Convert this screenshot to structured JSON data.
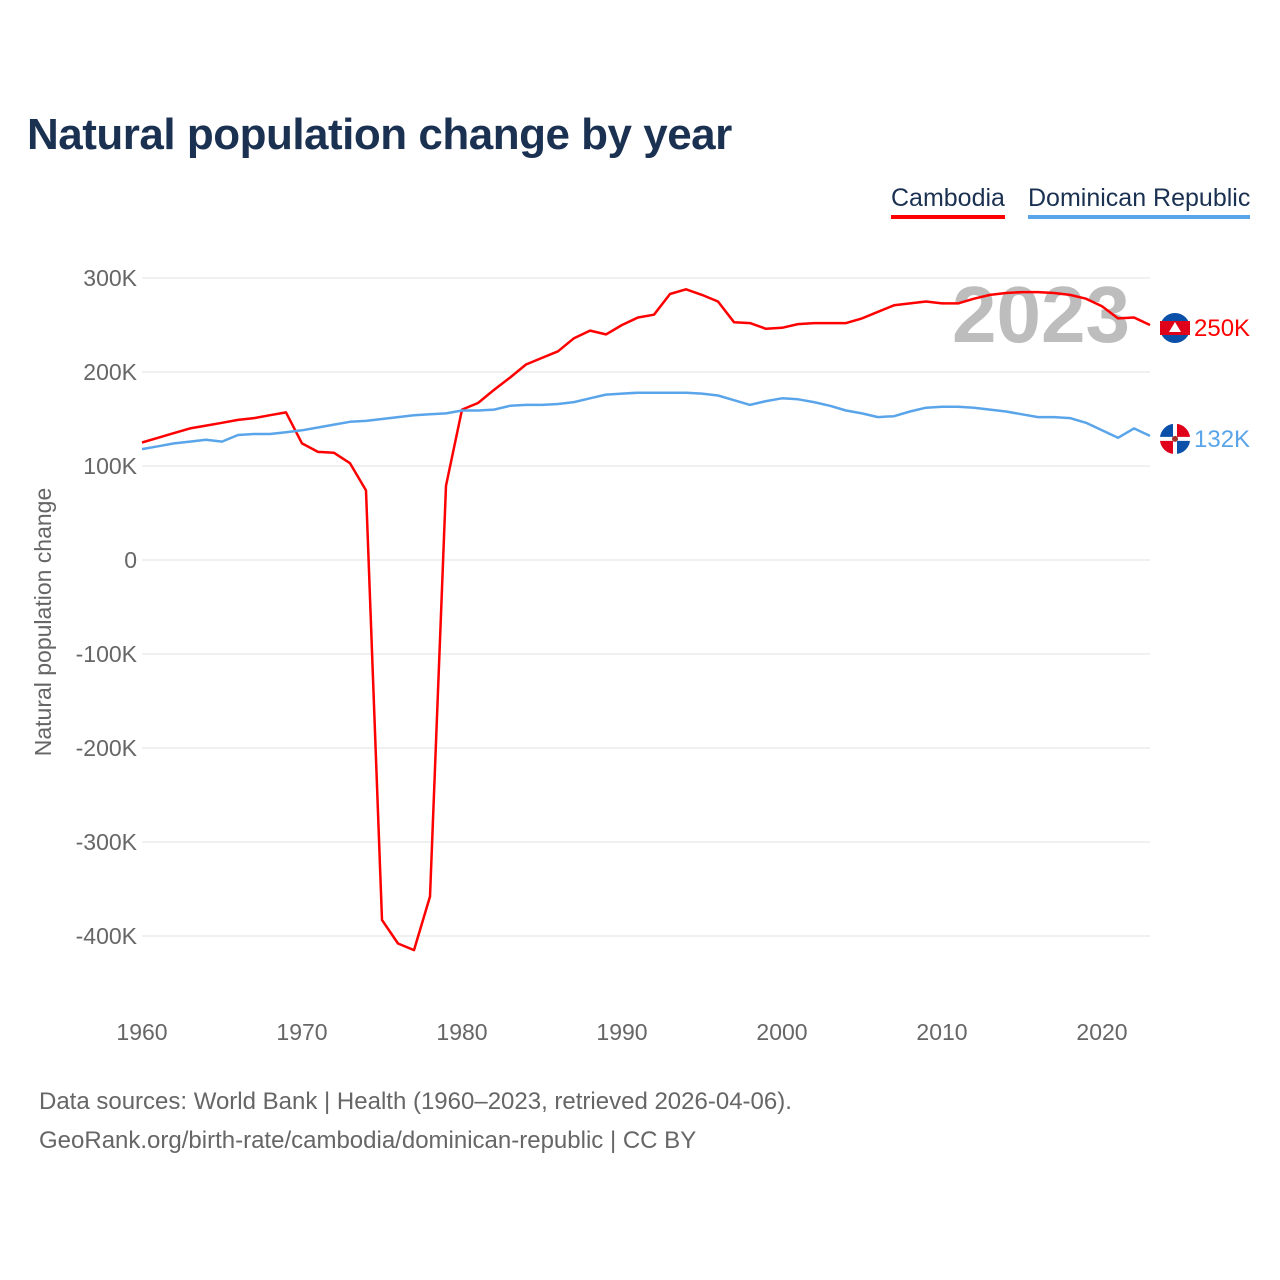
{
  "chart_data": {
    "type": "line",
    "title": "Natural population change by year",
    "xlabel": "",
    "ylabel": "Natural population change",
    "xlim": [
      1960,
      2023
    ],
    "ylim": [
      -450000,
      300000
    ],
    "x_ticks": [
      1960,
      1970,
      1980,
      1990,
      2000,
      2010,
      2020
    ],
    "x_tick_labels": [
      "1960",
      "1970",
      "1980",
      "1990",
      "2000",
      "2010",
      "2020"
    ],
    "y_ticks": [
      300000,
      200000,
      100000,
      0,
      -100000,
      -200000,
      -300000,
      -400000
    ],
    "y_tick_labels": [
      "300K",
      "200K",
      "100K",
      "0",
      "-100K",
      "-200K",
      "-300K",
      "-400K"
    ],
    "grid": true,
    "legend_position": "top-right",
    "year_watermark": "2023",
    "x": [
      1960,
      1961,
      1962,
      1963,
      1964,
      1965,
      1966,
      1967,
      1968,
      1969,
      1970,
      1971,
      1972,
      1973,
      1974,
      1975,
      1976,
      1977,
      1978,
      1979,
      1980,
      1981,
      1982,
      1983,
      1984,
      1985,
      1986,
      1987,
      1988,
      1989,
      1990,
      1991,
      1992,
      1993,
      1994,
      1995,
      1996,
      1997,
      1998,
      1999,
      2000,
      2001,
      2002,
      2003,
      2004,
      2005,
      2006,
      2007,
      2008,
      2009,
      2010,
      2011,
      2012,
      2013,
      2014,
      2015,
      2016,
      2017,
      2018,
      2019,
      2020,
      2021,
      2022,
      2023
    ],
    "series": [
      {
        "name": "Cambodia",
        "color": "#ff0000",
        "end_label": "250K",
        "values": [
          125000,
          130000,
          135000,
          140000,
          143000,
          146000,
          149000,
          151000,
          154000,
          157000,
          124000,
          115000,
          114000,
          103000,
          74000,
          -383000,
          -408000,
          -415000,
          -358000,
          79000,
          160000,
          167000,
          181000,
          194000,
          208000,
          215000,
          222000,
          236000,
          244000,
          240000,
          250000,
          258000,
          261000,
          283000,
          288000,
          282000,
          275000,
          253000,
          252000,
          246000,
          247000,
          251000,
          252000,
          252000,
          252000,
          257000,
          264000,
          271000,
          273000,
          275000,
          273000,
          273000,
          278000,
          282000,
          284000,
          285000,
          285000,
          284000,
          282000,
          278000,
          270000,
          257000,
          258000,
          250000
        ]
      },
      {
        "name": "Dominican Republic",
        "color": "#5aa5ea",
        "end_label": "132K",
        "values": [
          118000,
          121000,
          124000,
          126000,
          128000,
          126000,
          133000,
          134000,
          134000,
          136000,
          138000,
          141000,
          144000,
          147000,
          148000,
          150000,
          152000,
          154000,
          155000,
          156000,
          159000,
          159000,
          160000,
          164000,
          165000,
          165000,
          166000,
          168000,
          172000,
          176000,
          177000,
          178000,
          178000,
          178000,
          178000,
          177000,
          175000,
          170000,
          165000,
          169000,
          172000,
          171000,
          168000,
          164000,
          159000,
          156000,
          152000,
          153000,
          158000,
          162000,
          163000,
          163000,
          162000,
          160000,
          158000,
          155000,
          152000,
          152000,
          151000,
          146000,
          138000,
          130000,
          140000,
          132000
        ]
      }
    ]
  },
  "footer": {
    "line1": "Data sources: World Bank | Health (1960–2023, retrieved 2026-04-06).",
    "line2": "GeoRank.org/birth-rate/cambodia/dominican-republic | CC BY"
  }
}
